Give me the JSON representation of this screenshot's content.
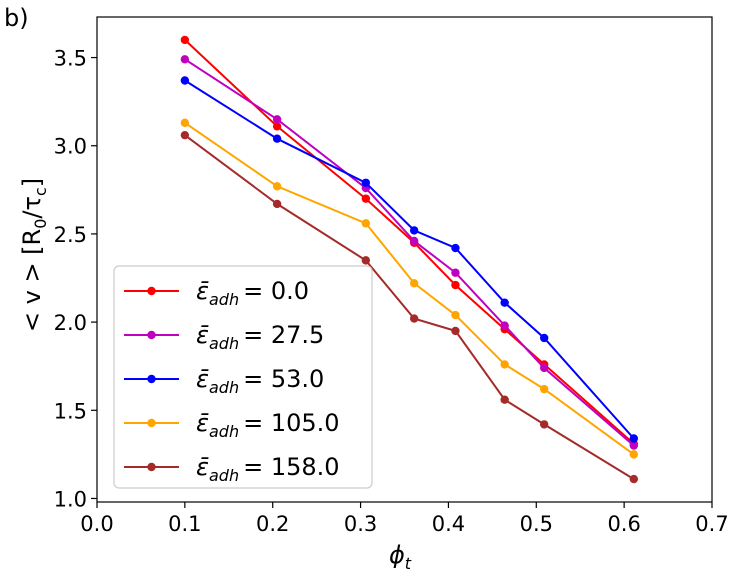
{
  "chart_data": {
    "type": "line",
    "panel_label": "b)",
    "xlabel": "ϕt",
    "xlabel_main": "ϕ",
    "xlabel_sub": "t",
    "ylabel": "< v > [R0/τc]",
    "ylabel_parts": {
      "pre": "< v > [R",
      "sub1": "0",
      "mid": "/τ",
      "sub2": "c",
      "post": "]"
    },
    "xlim": [
      0.0,
      0.7
    ],
    "ylim": [
      0.98,
      3.73
    ],
    "xticks": [
      0.0,
      0.1,
      0.2,
      0.3,
      0.4,
      0.5,
      0.6,
      0.7
    ],
    "xtick_labels": [
      "0.0",
      "0.1",
      "0.2",
      "0.3",
      "0.4",
      "0.5",
      "0.6",
      "0.7"
    ],
    "yticks": [
      1.0,
      1.5,
      2.0,
      2.5,
      3.0,
      3.5
    ],
    "ytick_labels": [
      "1.0",
      "1.5",
      "2.0",
      "2.5",
      "3.0",
      "3.5"
    ],
    "legend_position": "lower-left",
    "grid": false,
    "x": [
      0.1,
      0.205,
      0.306,
      0.361,
      0.408,
      0.464,
      0.509,
      0.611
    ],
    "series": [
      {
        "name": "ε̄adh = 0.0",
        "label_main": "ε̄",
        "label_sub": "adh",
        "label_value": "= 0.0",
        "color": "#ff0000",
        "values": [
          3.6,
          3.11,
          2.7,
          2.45,
          2.21,
          1.96,
          1.76,
          1.31
        ]
      },
      {
        "name": "ε̄adh = 27.5",
        "label_main": "ε̄",
        "label_sub": "adh",
        "label_value": "= 27.5",
        "color": "#bf00bf",
        "values": [
          3.49,
          3.15,
          2.76,
          2.46,
          2.28,
          1.98,
          1.74,
          1.3
        ]
      },
      {
        "name": "ε̄adh = 53.0",
        "label_main": "ε̄",
        "label_sub": "adh",
        "label_value": "= 53.0",
        "color": "#0000ff",
        "values": [
          3.37,
          3.04,
          2.79,
          2.52,
          2.42,
          2.11,
          1.91,
          1.34
        ]
      },
      {
        "name": "ε̄adh = 105.0",
        "label_main": "ε̄",
        "label_sub": "adh",
        "label_value": "= 105.0",
        "color": "#ffa500",
        "values": [
          3.13,
          2.77,
          2.56,
          2.22,
          2.04,
          1.76,
          1.62,
          1.25
        ]
      },
      {
        "name": "ε̄adh = 158.0",
        "label_main": "ε̄",
        "label_sub": "adh",
        "label_value": "= 158.0",
        "color": "#a52a2a",
        "values": [
          3.06,
          2.67,
          2.35,
          2.02,
          1.95,
          1.56,
          1.42,
          1.11
        ]
      }
    ]
  }
}
